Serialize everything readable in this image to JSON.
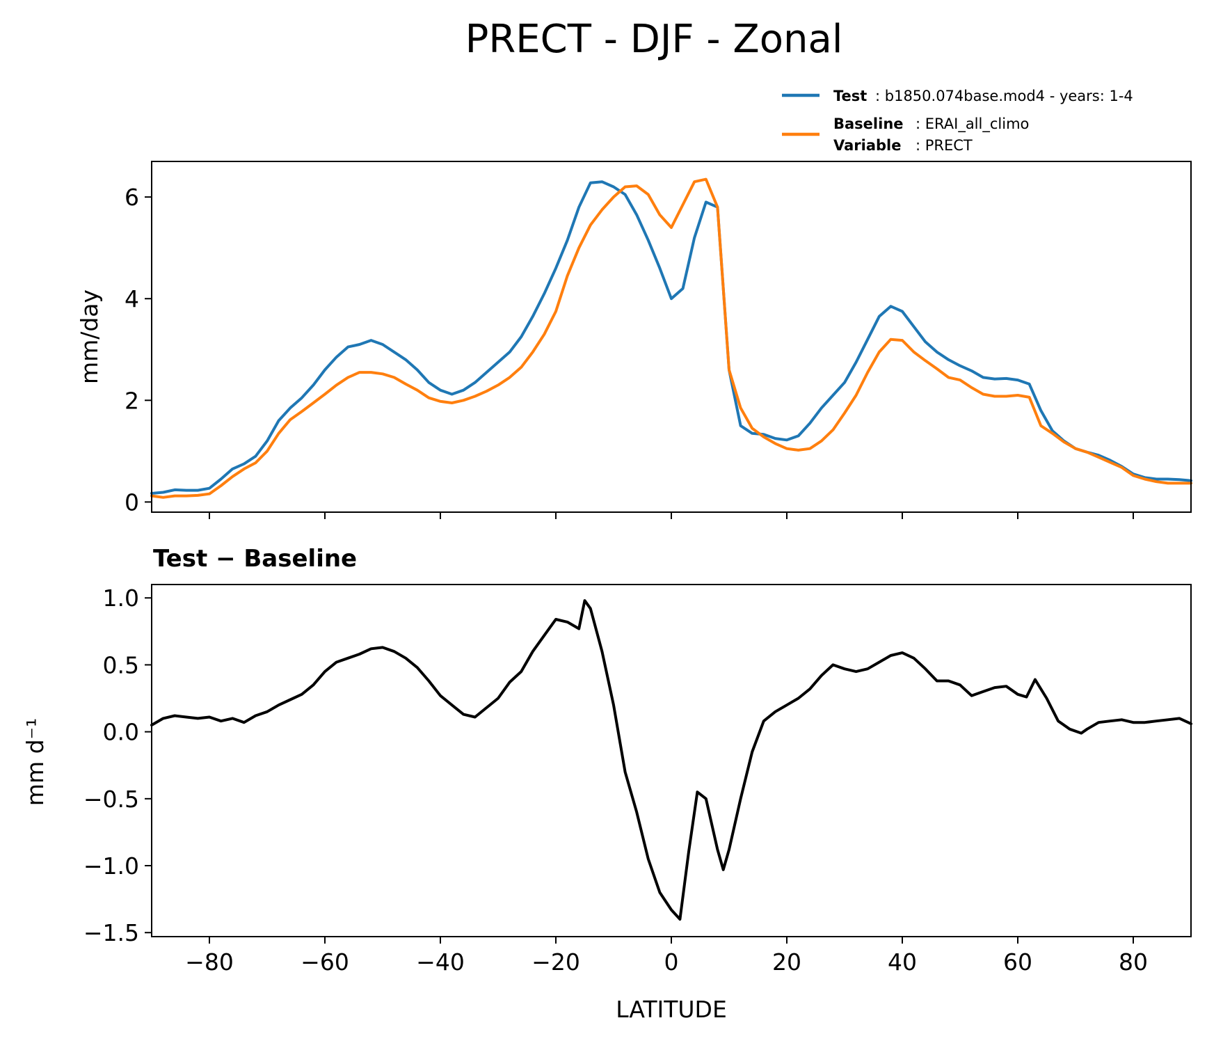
{
  "figure": {
    "title": "PRECT - DJF - Zonal"
  },
  "legend": {
    "test_key": "Test",
    "test_value": ": b1850.074base.mod4 - years: 1-4",
    "baseline_key": "Baseline",
    "baseline_value": ": ERAI_all_climo",
    "variable_key": "Variable",
    "variable_value": ": PRECT"
  },
  "colors": {
    "test": "#1f77b4",
    "baseline": "#ff7f0e",
    "difference": "#000000"
  },
  "chart_data": [
    {
      "type": "line",
      "title": "",
      "ylabel": "mm/day",
      "xlabel": "",
      "xlim": [
        -90,
        90
      ],
      "ylim": [
        -0.2,
        6.7
      ],
      "yticks": [
        0,
        2,
        4,
        6
      ],
      "ytick_labels": [
        "0",
        "2",
        "4",
        "6"
      ],
      "xticks": [
        -80,
        -60,
        -40,
        -20,
        0,
        20,
        40,
        60,
        80
      ],
      "show_x_tick_labels": false,
      "x": [
        -90,
        -88,
        -86,
        -84,
        -82,
        -80,
        -78,
        -76,
        -74,
        -72,
        -70,
        -68,
        -66,
        -64,
        -62,
        -60,
        -58,
        -56,
        -54,
        -52,
        -50,
        -48,
        -46,
        -44,
        -42,
        -40,
        -38,
        -36,
        -34,
        -32,
        -30,
        -28,
        -26,
        -24,
        -22,
        -20,
        -18,
        -16,
        -14,
        -12,
        -10,
        -8,
        -6,
        -4,
        -2,
        0,
        2,
        4,
        6,
        8,
        10,
        12,
        14,
        16,
        18,
        20,
        22,
        24,
        26,
        28,
        30,
        32,
        34,
        36,
        38,
        40,
        42,
        44,
        46,
        48,
        50,
        52,
        54,
        56,
        58,
        60,
        62,
        64,
        66,
        68,
        70,
        72,
        74,
        76,
        78,
        80,
        82,
        84,
        86,
        88,
        90
      ],
      "series": [
        {
          "name": "Test",
          "color": "#1f77b4",
          "values": [
            0.17,
            0.19,
            0.24,
            0.23,
            0.23,
            0.27,
            0.45,
            0.65,
            0.75,
            0.9,
            1.2,
            1.6,
            1.85,
            2.05,
            2.3,
            2.6,
            2.85,
            3.05,
            3.1,
            3.18,
            3.1,
            2.95,
            2.8,
            2.6,
            2.35,
            2.2,
            2.12,
            2.2,
            2.35,
            2.55,
            2.75,
            2.95,
            3.25,
            3.65,
            4.1,
            4.6,
            5.15,
            5.8,
            6.28,
            6.3,
            6.2,
            6.05,
            5.65,
            5.15,
            4.6,
            4.0,
            4.2,
            5.2,
            5.9,
            5.8,
            2.6,
            1.5,
            1.35,
            1.33,
            1.25,
            1.22,
            1.3,
            1.55,
            1.85,
            2.1,
            2.35,
            2.75,
            3.2,
            3.65,
            3.85,
            3.75,
            3.45,
            3.15,
            2.95,
            2.8,
            2.68,
            2.58,
            2.45,
            2.42,
            2.43,
            2.4,
            2.32,
            1.8,
            1.4,
            1.2,
            1.05,
            0.98,
            0.92,
            0.82,
            0.7,
            0.55,
            0.48,
            0.45,
            0.45,
            0.44,
            0.42
          ]
        },
        {
          "name": "Baseline",
          "color": "#ff7f0e",
          "values": [
            0.12,
            0.09,
            0.12,
            0.12,
            0.13,
            0.16,
            0.32,
            0.5,
            0.65,
            0.77,
            1.0,
            1.35,
            1.62,
            1.78,
            1.95,
            2.12,
            2.3,
            2.45,
            2.55,
            2.55,
            2.52,
            2.45,
            2.32,
            2.2,
            2.05,
            1.98,
            1.95,
            2.0,
            2.08,
            2.18,
            2.3,
            2.45,
            2.65,
            2.95,
            3.3,
            3.75,
            4.45,
            5.0,
            5.45,
            5.75,
            6.0,
            6.2,
            6.22,
            6.05,
            5.65,
            5.4,
            5.85,
            6.3,
            6.35,
            5.8,
            2.6,
            1.85,
            1.45,
            1.28,
            1.15,
            1.05,
            1.02,
            1.05,
            1.2,
            1.42,
            1.75,
            2.1,
            2.55,
            2.95,
            3.2,
            3.18,
            2.95,
            2.78,
            2.62,
            2.45,
            2.4,
            2.25,
            2.12,
            2.08,
            2.08,
            2.1,
            2.06,
            1.5,
            1.35,
            1.18,
            1.05,
            0.98,
            0.88,
            0.78,
            0.68,
            0.52,
            0.45,
            0.4,
            0.37,
            0.37,
            0.37
          ]
        }
      ]
    },
    {
      "type": "line",
      "title": "Test − Baseline",
      "ylabel": "mm d⁻¹",
      "xlabel": "LATITUDE",
      "xlim": [
        -90,
        90
      ],
      "ylim": [
        -1.53,
        1.1
      ],
      "yticks": [
        1.0,
        0.5,
        0.0,
        -0.5,
        -1.0,
        -1.5
      ],
      "ytick_labels": [
        "1.0",
        "0.5",
        "0.0",
        "−0.5",
        "−1.0",
        "−1.5"
      ],
      "xticks": [
        -80,
        -60,
        -40,
        -20,
        0,
        20,
        40,
        60,
        80
      ],
      "xtick_labels": [
        "−80",
        "−60",
        "−40",
        "−20",
        "0",
        "20",
        "40",
        "60",
        "80"
      ],
      "x": [
        -90,
        -88,
        -86,
        -84,
        -82,
        -80,
        -78,
        -76,
        -74,
        -72,
        -70,
        -68,
        -66,
        -64,
        -62,
        -60,
        -58,
        -56,
        -54,
        -52,
        -50,
        -48,
        -46,
        -44,
        -42,
        -40,
        -38,
        -36,
        -34,
        -32,
        -30,
        -28,
        -26,
        -24,
        -22,
        -20,
        -18,
        -16,
        -15,
        -14,
        -12,
        -10,
        -8,
        -6,
        -4,
        -2,
        0,
        1.5,
        3,
        4.5,
        6,
        8,
        9,
        10,
        12,
        14,
        16,
        18,
        20,
        22,
        24,
        26,
        28,
        30,
        32,
        34,
        36,
        38,
        40,
        42,
        44,
        46,
        48,
        50,
        52,
        54,
        56,
        58,
        60,
        61.5,
        63,
        65,
        67,
        69,
        71,
        72,
        74,
        76,
        78,
        80,
        82,
        84,
        86,
        88,
        90
      ],
      "series": [
        {
          "name": "Test − Baseline",
          "color": "#000000",
          "values": [
            0.05,
            0.1,
            0.12,
            0.11,
            0.1,
            0.11,
            0.08,
            0.1,
            0.07,
            0.12,
            0.15,
            0.2,
            0.24,
            0.28,
            0.35,
            0.45,
            0.52,
            0.55,
            0.58,
            0.62,
            0.63,
            0.6,
            0.55,
            0.48,
            0.38,
            0.27,
            0.2,
            0.13,
            0.11,
            0.18,
            0.25,
            0.37,
            0.45,
            0.6,
            0.72,
            0.84,
            0.82,
            0.77,
            0.98,
            0.92,
            0.6,
            0.2,
            -0.3,
            -0.6,
            -0.95,
            -1.2,
            -1.33,
            -1.4,
            -0.9,
            -0.45,
            -0.5,
            -0.88,
            -1.03,
            -0.88,
            -0.5,
            -0.15,
            0.08,
            0.15,
            0.2,
            0.25,
            0.32,
            0.42,
            0.5,
            0.47,
            0.45,
            0.47,
            0.52,
            0.57,
            0.59,
            0.55,
            0.47,
            0.38,
            0.38,
            0.35,
            0.27,
            0.3,
            0.33,
            0.34,
            0.28,
            0.26,
            0.39,
            0.25,
            0.08,
            0.02,
            -0.01,
            0.02,
            0.07,
            0.08,
            0.09,
            0.07,
            0.07,
            0.08,
            0.09,
            0.1,
            0.06
          ]
        }
      ]
    }
  ]
}
